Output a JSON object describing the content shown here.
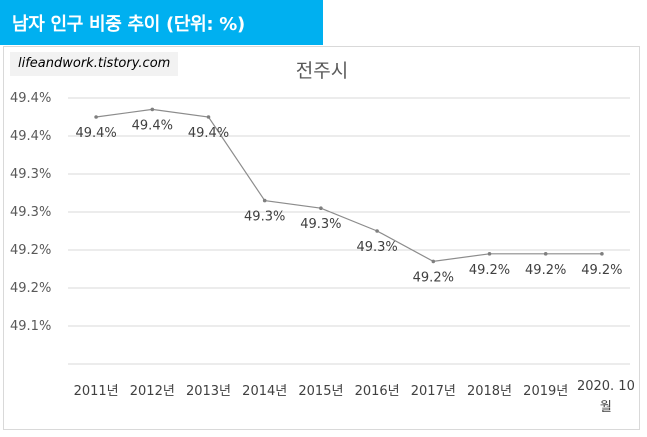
{
  "header": {
    "title": "남자 인구 비중 추이 (단위: %)"
  },
  "credit": {
    "text": "lifeandwork.tistory.com"
  },
  "colors": {
    "banner": "#00b0f0",
    "line": "#8c8c8c",
    "marker": "#7f7f7f",
    "grid": "#d9d9d9"
  },
  "chart_data": {
    "type": "line",
    "title": "전주시",
    "xlabel": "",
    "ylabel": "",
    "categories": [
      "2011년",
      "2012년",
      "2013년",
      "2014년",
      "2015년",
      "2016년",
      "2017년",
      "2018년",
      "2019년",
      "2020. 10월"
    ],
    "series": [
      {
        "name": "남자 인구 비중",
        "values": [
          49.4,
          49.41,
          49.4,
          49.29,
          49.28,
          49.25,
          49.21,
          49.22,
          49.22,
          49.22
        ],
        "data_labels": [
          "49.4%",
          "49.4%",
          "49.4%",
          "49.3%",
          "49.3%",
          "49.3%",
          "49.2%",
          "49.2%",
          "49.2%",
          "49.2%"
        ]
      }
    ],
    "ylim": [
      49.075,
      49.425
    ],
    "yticks": [
      49.425,
      49.375,
      49.325,
      49.275,
      49.225,
      49.175,
      49.125,
      49.075
    ],
    "ytick_labels": [
      "49.4%",
      "49.4%",
      "49.3%",
      "49.3%",
      "49.2%",
      "49.2%",
      "49.1%",
      ""
    ],
    "grid": true,
    "legend": "none"
  }
}
